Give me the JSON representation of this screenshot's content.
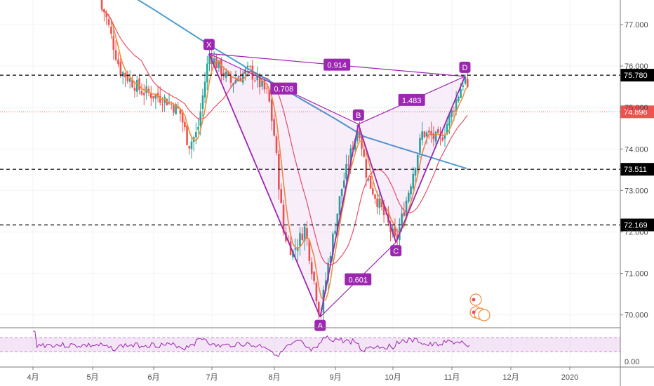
{
  "chart_data": {
    "type": "candlestick",
    "title": "",
    "xlabel": "",
    "ylabel": "",
    "ylim": [
      69.7,
      77.9
    ],
    "months": [
      "4月",
      "5月",
      "6月",
      "7月",
      "8月",
      "9月",
      "10月",
      "11月",
      "12月",
      "2020"
    ],
    "price_ticks": [
      "77.000",
      "76.000",
      "75.000",
      "74.000",
      "73.000",
      "72.000",
      "71.000",
      "70.000"
    ],
    "price_tick_values": [
      77,
      76,
      75,
      74,
      73,
      72,
      71,
      70
    ],
    "horizontal_levels": [
      {
        "value": 75.78,
        "label": "75.780",
        "style": "dashed-black"
      },
      {
        "value": 73.511,
        "label": "73.511",
        "style": "dashed-black"
      },
      {
        "value": 72.169,
        "label": "72.169",
        "style": "dashed-black"
      },
      {
        "value": 74.896,
        "label": "74.896",
        "style": "dotted-red"
      }
    ],
    "pattern_points": [
      {
        "name": "X",
        "month": 6.95,
        "price": 76.3
      },
      {
        "name": "A",
        "month": 8.75,
        "price": 69.95
      },
      {
        "name": "B",
        "month": 9.4,
        "price": 74.6
      },
      {
        "name": "C",
        "month": 10.05,
        "price": 71.75
      },
      {
        "name": "D",
        "month": 11.22,
        "price": 75.75
      }
    ],
    "ratios": [
      {
        "label": "0.914",
        "from": "X",
        "to": "D"
      },
      {
        "label": "0.708",
        "from": "X",
        "to": "B"
      },
      {
        "label": "1.483",
        "from": "B",
        "to": "D"
      },
      {
        "label": "0.601",
        "from": "A",
        "to": "C"
      }
    ],
    "indicator": {
      "ticks": [
        "0.00"
      ],
      "tick_values": [
        0
      ]
    },
    "colors": {
      "up": "#26a69a",
      "down": "#ef5350",
      "pattern": "#9c27b0",
      "ma_fast": "#f0913a",
      "ma_mid": "#e8506a",
      "ma_slow": "#2f8bc4",
      "last_price": "#ef5350",
      "rsi": "#9c27b0"
    }
  }
}
